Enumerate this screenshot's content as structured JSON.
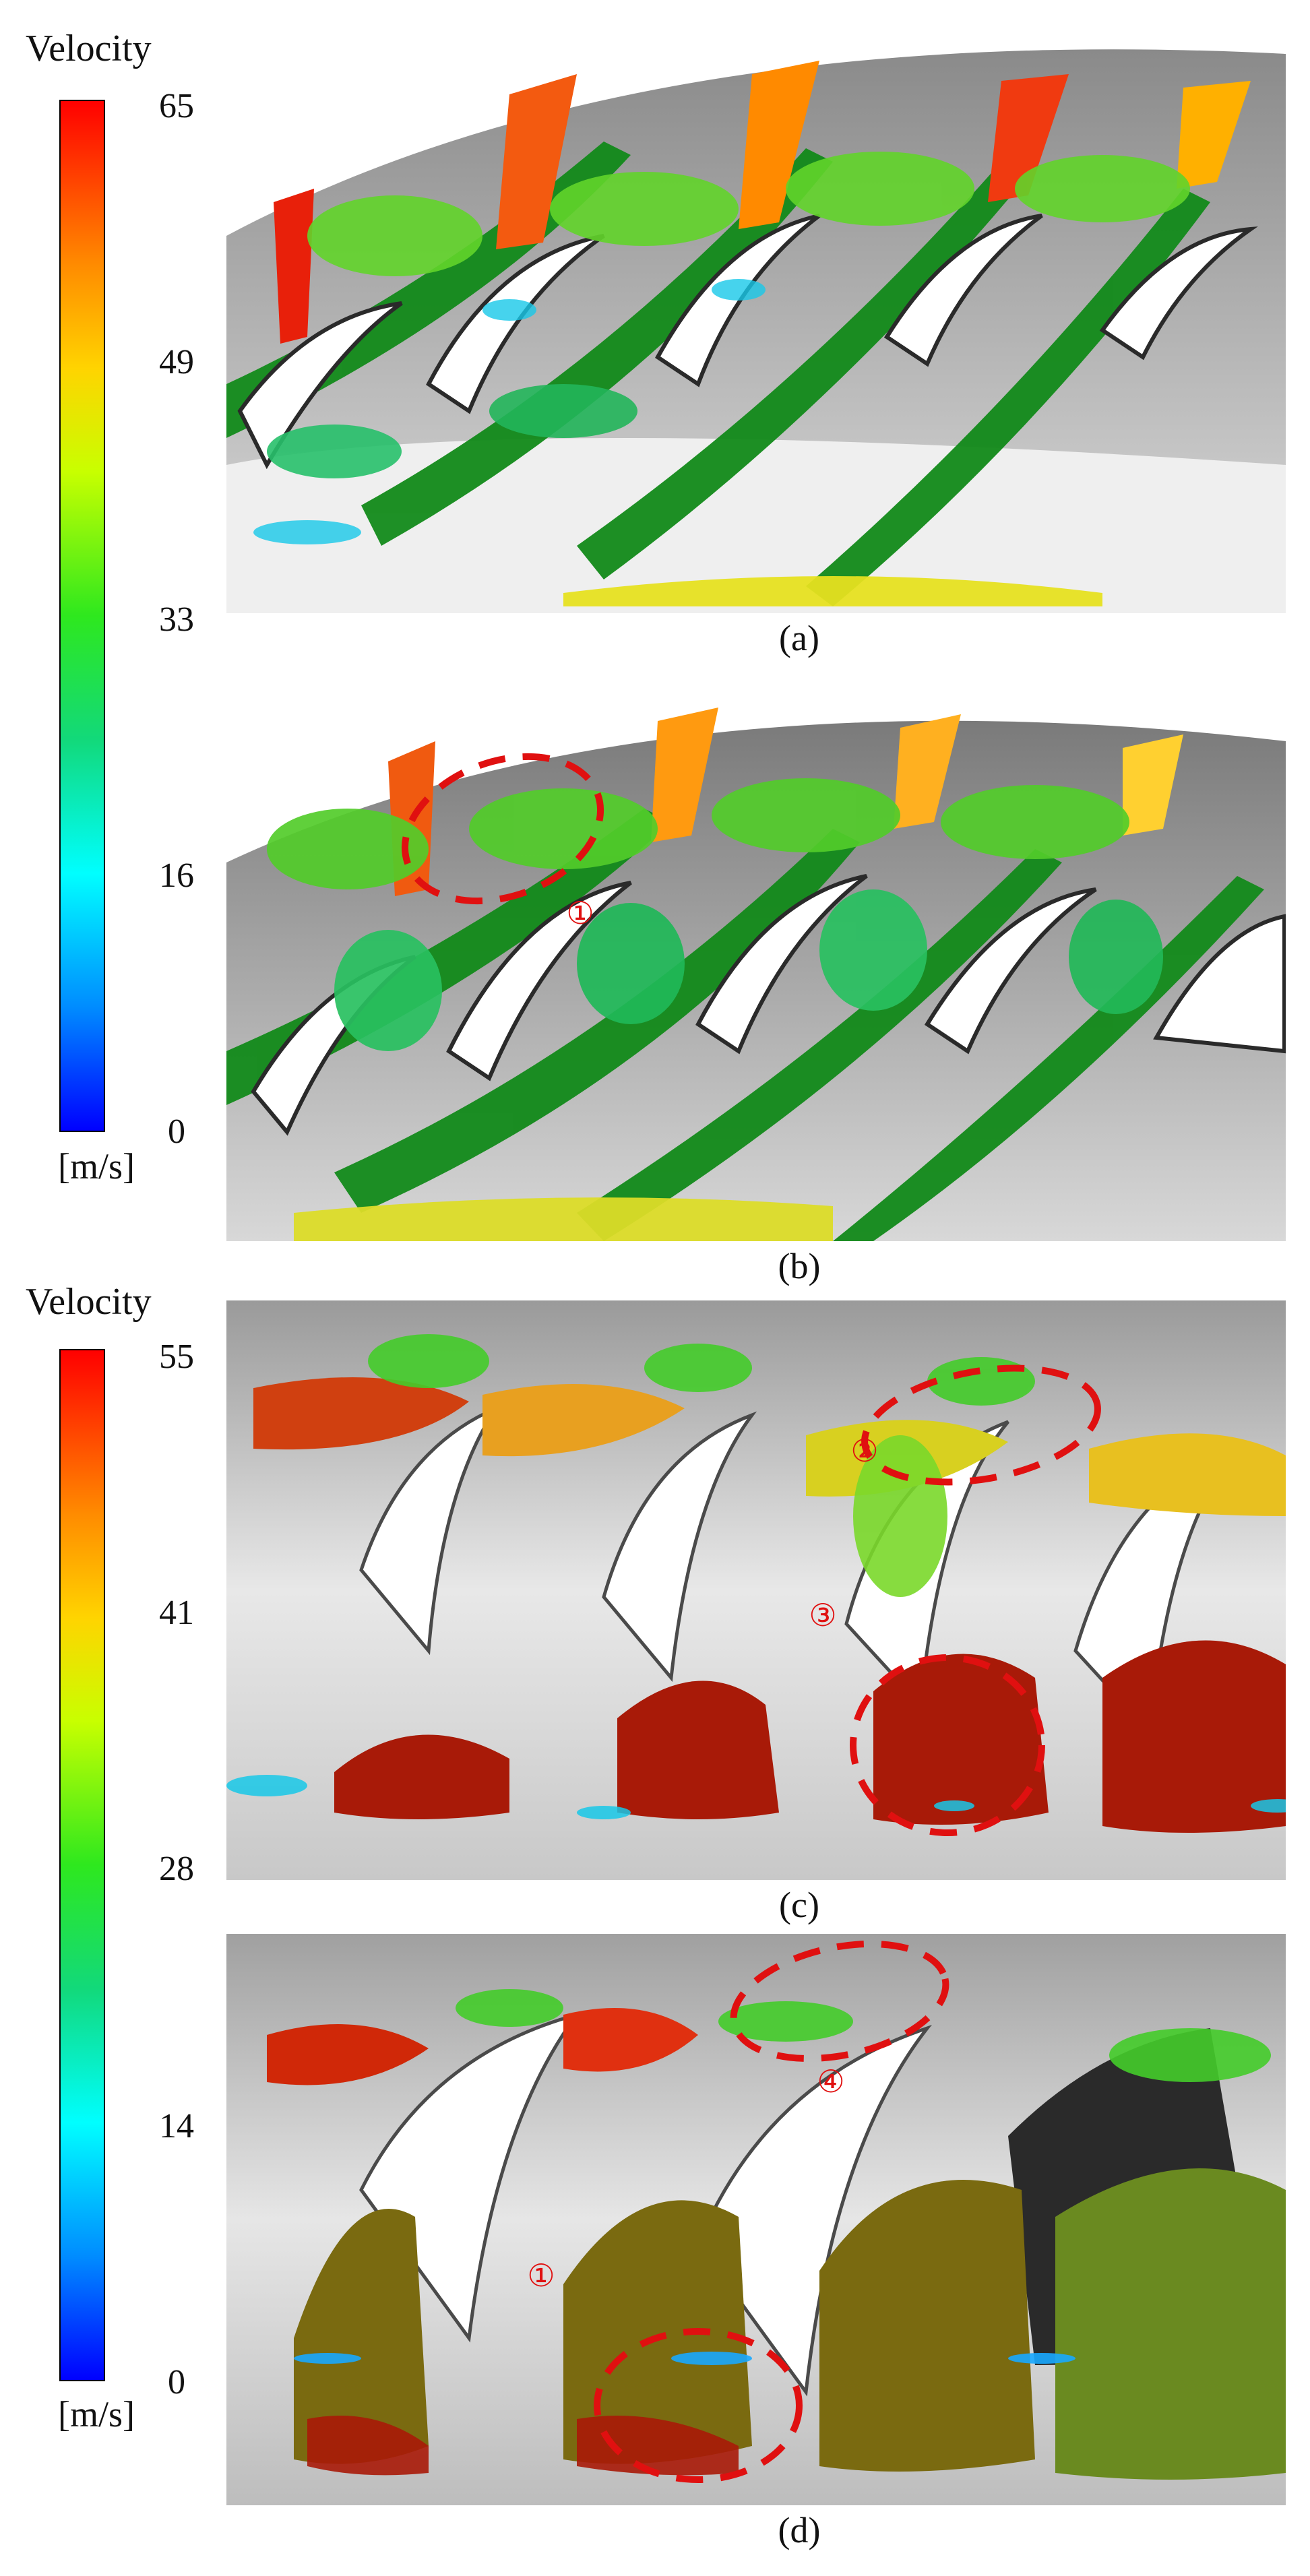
{
  "top": {
    "colorbar": {
      "title": "Velocity",
      "ticks": [
        "65",
        "49",
        "33",
        "16",
        "0"
      ],
      "unit": "[m/s]"
    },
    "panels": [
      {
        "caption": "(a)",
        "markers": []
      },
      {
        "caption": "(b)",
        "markers": [
          "①"
        ]
      }
    ]
  },
  "bottom": {
    "colorbar": {
      "title": "Velocity",
      "ticks": [
        "55",
        "41",
        "28",
        "14",
        "0"
      ],
      "unit": "[m/s]"
    },
    "panels": [
      {
        "caption": "(c)",
        "markers": [
          "②",
          "③"
        ]
      },
      {
        "caption": "(d)",
        "markers": [
          "④",
          "①"
        ]
      }
    ]
  },
  "colors": {
    "highlight": "#e01010",
    "bg_gray": "#d6d6d6",
    "blade_dark": "#3a3a3a",
    "flow_green": "#2ecc2e",
    "flow_red": "#b81a0a"
  }
}
